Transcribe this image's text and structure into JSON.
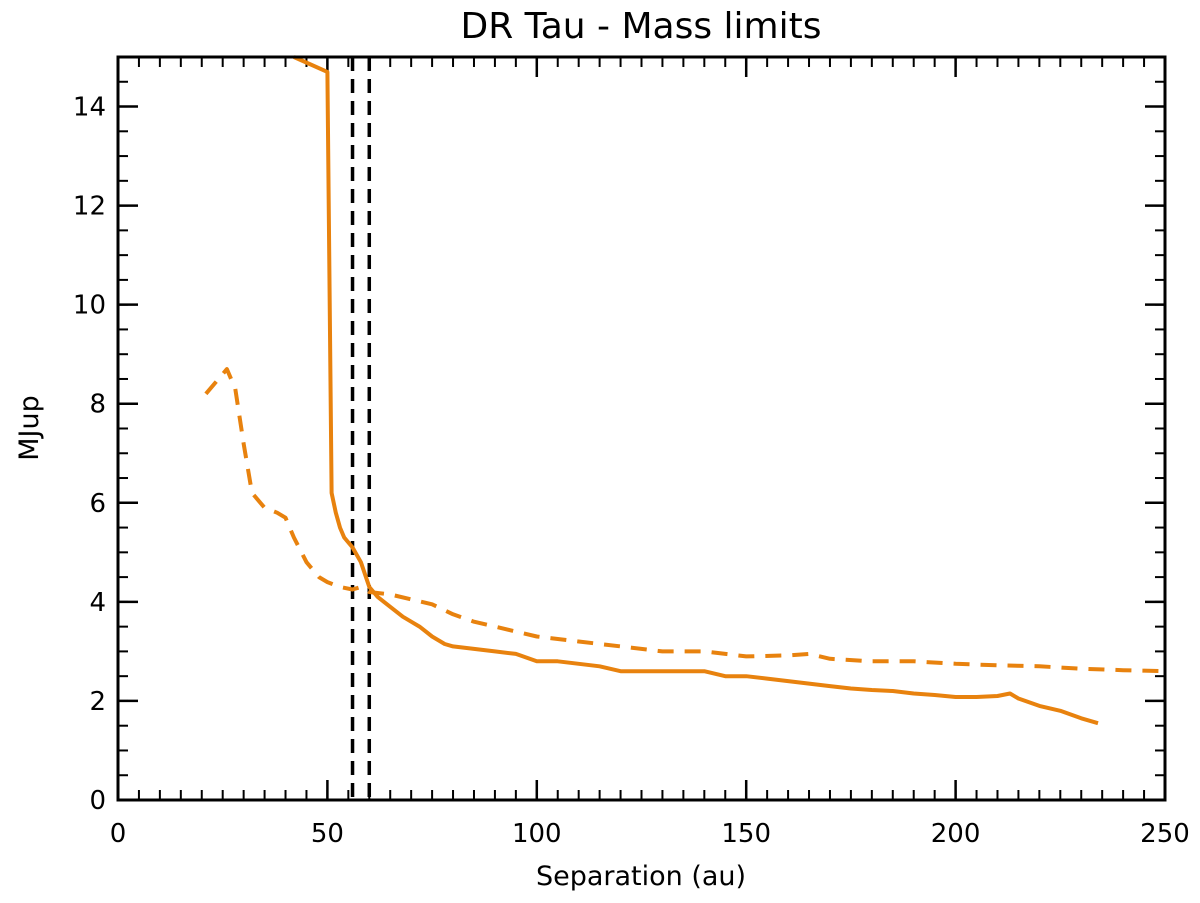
{
  "chart_data": {
    "type": "line",
    "title": "DR Tau - Mass limits",
    "xlabel": "Separation (au)",
    "ylabel": "MJup",
    "xlim": [
      0,
      250
    ],
    "ylim": [
      0,
      15
    ],
    "x_ticks": [
      0,
      50,
      100,
      150,
      200,
      250
    ],
    "y_ticks": [
      0,
      2,
      4,
      6,
      8,
      10,
      12,
      14
    ],
    "x_minor_step": 5,
    "y_minor_step": 0.5,
    "grid": false,
    "series": [
      {
        "name": "solid",
        "color": "#e8820e",
        "style": "solid",
        "points": [
          [
            42,
            15.0
          ],
          [
            50,
            14.7
          ],
          [
            51,
            6.2
          ],
          [
            52,
            5.8
          ],
          [
            53,
            5.5
          ],
          [
            54,
            5.3
          ],
          [
            56,
            5.1
          ],
          [
            58,
            4.8
          ],
          [
            60,
            4.3
          ],
          [
            62,
            4.1
          ],
          [
            65,
            3.9
          ],
          [
            68,
            3.7
          ],
          [
            70,
            3.6
          ],
          [
            72,
            3.5
          ],
          [
            75,
            3.3
          ],
          [
            78,
            3.15
          ],
          [
            80,
            3.1
          ],
          [
            85,
            3.05
          ],
          [
            90,
            3.0
          ],
          [
            95,
            2.95
          ],
          [
            100,
            2.8
          ],
          [
            105,
            2.8
          ],
          [
            110,
            2.75
          ],
          [
            115,
            2.7
          ],
          [
            120,
            2.6
          ],
          [
            125,
            2.6
          ],
          [
            130,
            2.6
          ],
          [
            135,
            2.6
          ],
          [
            140,
            2.6
          ],
          [
            145,
            2.5
          ],
          [
            150,
            2.5
          ],
          [
            155,
            2.45
          ],
          [
            160,
            2.4
          ],
          [
            165,
            2.35
          ],
          [
            170,
            2.3
          ],
          [
            175,
            2.25
          ],
          [
            180,
            2.22
          ],
          [
            185,
            2.2
          ],
          [
            190,
            2.15
          ],
          [
            195,
            2.12
          ],
          [
            200,
            2.08
          ],
          [
            205,
            2.08
          ],
          [
            210,
            2.1
          ],
          [
            213,
            2.15
          ],
          [
            215,
            2.05
          ],
          [
            220,
            1.9
          ],
          [
            225,
            1.8
          ],
          [
            230,
            1.65
          ],
          [
            234,
            1.55
          ]
        ]
      },
      {
        "name": "dashed",
        "color": "#e8820e",
        "style": "dashed",
        "points": [
          [
            21,
            8.2
          ],
          [
            24,
            8.5
          ],
          [
            26,
            8.7
          ],
          [
            28,
            8.3
          ],
          [
            30,
            7.2
          ],
          [
            32,
            6.2
          ],
          [
            35,
            5.9
          ],
          [
            38,
            5.8
          ],
          [
            40,
            5.7
          ],
          [
            42,
            5.3
          ],
          [
            45,
            4.8
          ],
          [
            48,
            4.5
          ],
          [
            50,
            4.4
          ],
          [
            53,
            4.3
          ],
          [
            56,
            4.25
          ],
          [
            58,
            4.3
          ],
          [
            60,
            4.2
          ],
          [
            65,
            4.15
          ],
          [
            70,
            4.05
          ],
          [
            75,
            3.95
          ],
          [
            80,
            3.75
          ],
          [
            85,
            3.6
          ],
          [
            90,
            3.5
          ],
          [
            95,
            3.4
          ],
          [
            100,
            3.3
          ],
          [
            110,
            3.2
          ],
          [
            120,
            3.1
          ],
          [
            130,
            3.0
          ],
          [
            140,
            3.0
          ],
          [
            150,
            2.9
          ],
          [
            160,
            2.92
          ],
          [
            165,
            2.95
          ],
          [
            170,
            2.85
          ],
          [
            180,
            2.8
          ],
          [
            190,
            2.8
          ],
          [
            200,
            2.75
          ],
          [
            210,
            2.72
          ],
          [
            220,
            2.7
          ],
          [
            230,
            2.65
          ],
          [
            240,
            2.62
          ],
          [
            250,
            2.6
          ]
        ]
      }
    ],
    "vertical_lines": [
      {
        "x": 56,
        "color": "#000000",
        "style": "dashed"
      },
      {
        "x": 60,
        "color": "#000000",
        "style": "dashed"
      }
    ]
  }
}
